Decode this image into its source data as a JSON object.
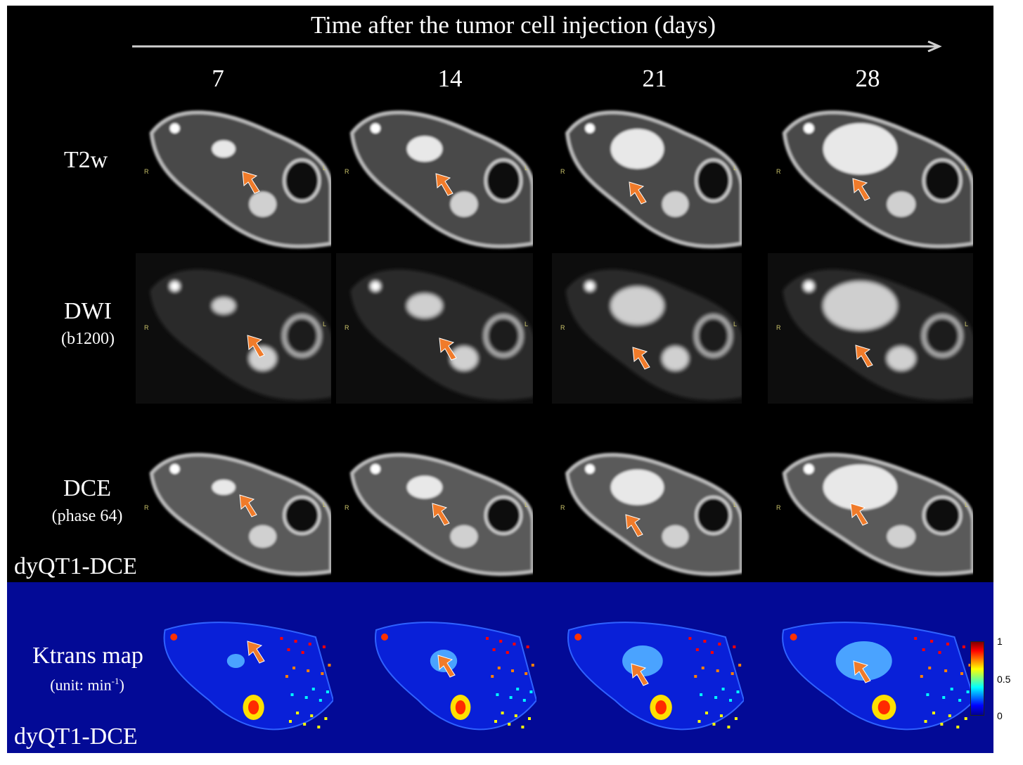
{
  "figure": {
    "title": "Time after the tumor cell injection (days)",
    "days": [
      "7",
      "14",
      "21",
      "28"
    ],
    "rows": [
      {
        "label": "T2w",
        "sublabel": ""
      },
      {
        "label": "DWI",
        "sublabel": "(b1200)"
      },
      {
        "label": "DCE",
        "sublabel": "(phase 64)"
      }
    ],
    "method_label_top": "dyQT1-DCE",
    "ktrans": {
      "label": "Ktrans map",
      "unit_prefix": "(unit: min",
      "unit_sup": "-1",
      "unit_suffix": ")",
      "method_label": "dyQT1-DCE"
    },
    "orientation": {
      "left": "R",
      "right": "L"
    },
    "colorbar": {
      "max": "1",
      "mid": "0.5",
      "min": "0"
    },
    "colors": {
      "background": "#000000",
      "ktrans_background": "#030a96",
      "arrow": "#f07b2a",
      "label_text": "#ffffff",
      "orientation_text": "#c9c26a"
    }
  }
}
